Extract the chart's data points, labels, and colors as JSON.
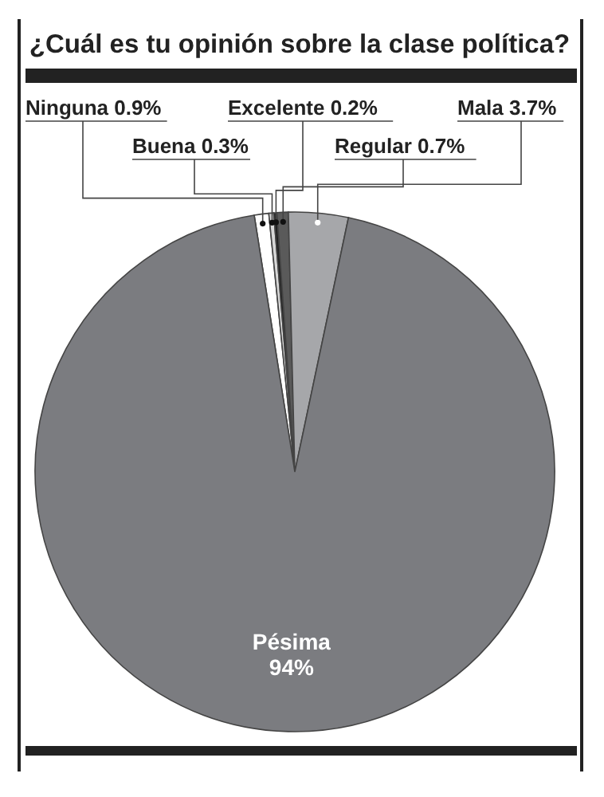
{
  "chart_data": {
    "type": "pie",
    "title": "¿Cuál es tu opinión sobre la clase política?",
    "categories": [
      "Ninguna",
      "Buena",
      "Excelente",
      "Regular",
      "Mala",
      "Pésima"
    ],
    "values": [
      0.9,
      0.3,
      0.2,
      0.7,
      3.7,
      94
    ],
    "value_labels": [
      "0.9%",
      "0.3%",
      "0.2%",
      "0.7%",
      "3.7%",
      "94%"
    ],
    "colors": [
      "#ffffff",
      "#d8d8d8",
      "#222222",
      "#5a5a5a",
      "#a6a7aa",
      "#7b7c80"
    ]
  }
}
